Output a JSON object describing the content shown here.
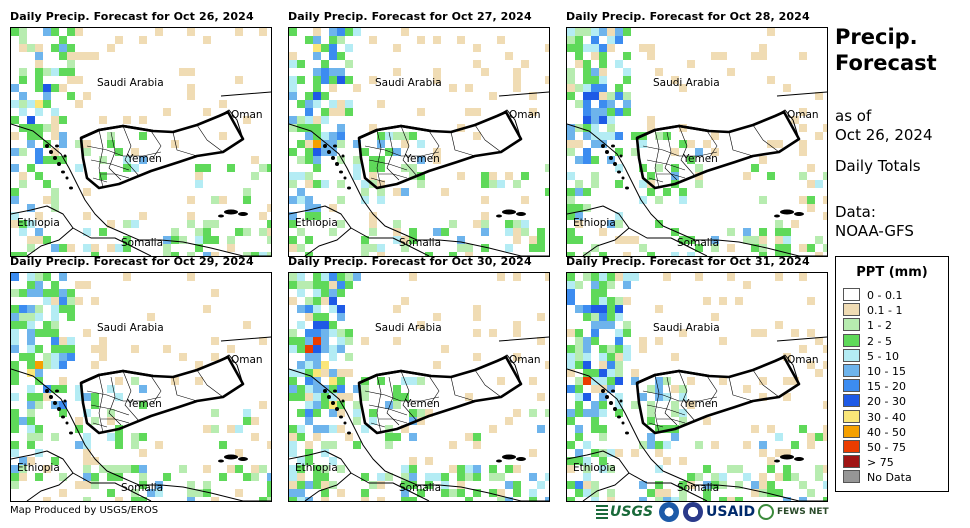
{
  "panels": [
    {
      "title": "Daily Precip. Forecast for Oct 26, 2024",
      "seed": 11,
      "wetness": 0.9
    },
    {
      "title": "Daily Precip. Forecast for Oct 27, 2024",
      "seed": 23,
      "wetness": 1.0
    },
    {
      "title": "Daily Precip. Forecast for Oct 28, 2024",
      "seed": 37,
      "wetness": 0.95
    },
    {
      "title": "Daily Precip. Forecast for Oct 29, 2024",
      "seed": 41,
      "wetness": 1.0
    },
    {
      "title": "Daily Precip. Forecast for Oct 30, 2024",
      "seed": 53,
      "wetness": 1.15
    },
    {
      "title": "Daily Precip. Forecast for Oct 31, 2024",
      "seed": 67,
      "wetness": 1.05
    }
  ],
  "map_labels": {
    "saudi_arabia": "Saudi Arabia",
    "oman": "Oman",
    "yemen": "Yemen",
    "ethiopia": "Ethiopia",
    "somalia": "Somalia"
  },
  "sidebar": {
    "title": "Precip. Forecast",
    "as_of_label": "as of",
    "as_of_date": "Oct 26, 2024",
    "totals_label": "Daily Totals",
    "data_label": "Data:",
    "data_source": "NOAA-GFS"
  },
  "legend": {
    "title": "PPT (mm)",
    "items": [
      {
        "label": "0 - 0.1",
        "color": "#ffffff"
      },
      {
        "label": "0.1 - 1",
        "color": "#f0dcb4"
      },
      {
        "label": "1 - 2",
        "color": "#b7ecb0"
      },
      {
        "label": "2 - 5",
        "color": "#5fd95a"
      },
      {
        "label": "5 - 10",
        "color": "#b4ecf4"
      },
      {
        "label": "10 - 15",
        "color": "#6eb4ec"
      },
      {
        "label": "15 - 20",
        "color": "#3c8cf0"
      },
      {
        "label": "20 - 30",
        "color": "#1e5ae6"
      },
      {
        "label": "30 - 40",
        "color": "#fae678"
      },
      {
        "label": "40 - 50",
        "color": "#f5a000"
      },
      {
        "label": "50 - 75",
        "color": "#eb3c00"
      },
      {
        "label": "> 75",
        "color": "#a01414"
      },
      {
        "label": "No Data",
        "color": "#969696"
      }
    ]
  },
  "footer": {
    "credit": "Map Produced by USGS/EROS",
    "logo_usgs": "USGS",
    "logo_usaid": "USAID",
    "logo_fews": "FEWS NET"
  }
}
